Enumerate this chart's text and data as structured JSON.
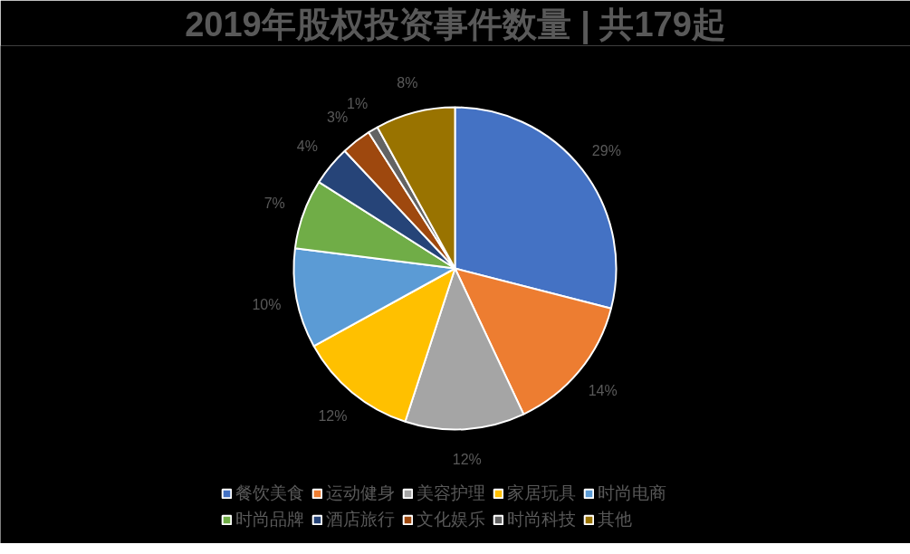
{
  "chart_data": {
    "type": "pie",
    "title": "2019年股权投资事件数量 | 共179起",
    "categories": [
      "餐饮美食",
      "运动健身",
      "美容护理",
      "家居玩具",
      "时尚电商",
      "时尚品牌",
      "酒店旅行",
      "文化娱乐",
      "时尚科技",
      "其他"
    ],
    "values": [
      29,
      14,
      12,
      12,
      10,
      7,
      4,
      3,
      1,
      8
    ],
    "colors": [
      "#4472c4",
      "#ed7d31",
      "#a5a5a5",
      "#ffc000",
      "#5b9bd5",
      "#70ad47",
      "#264478",
      "#9e480e",
      "#636363",
      "#997300"
    ],
    "value_labels": [
      "29%",
      "14%",
      "12%",
      "12%",
      "10%",
      "7%",
      "4%",
      "3%",
      "1%",
      "8%"
    ],
    "legend": "bottom"
  }
}
